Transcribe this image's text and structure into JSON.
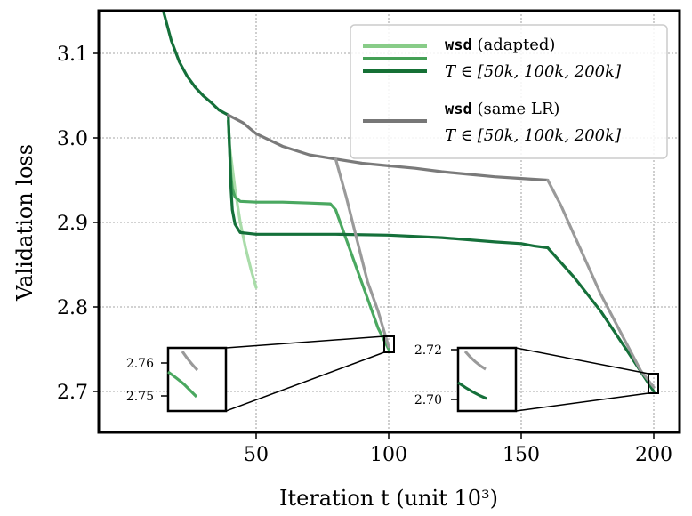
{
  "chart_data": {
    "type": "line",
    "xlabel": "Iteration t (unit 10³)",
    "ylabel": "Validation loss",
    "xlim": [
      0,
      210
    ],
    "ylim": [
      2.65,
      3.15
    ],
    "xticks": [
      50,
      100,
      150,
      200
    ],
    "yticks": [
      2.7,
      2.8,
      2.9,
      3.0,
      3.1
    ],
    "xtick_labels": [
      "50",
      "100",
      "150",
      "200"
    ],
    "ytick_labels": [
      "2.7",
      "2.8",
      "2.9",
      "3.0",
      "3.1"
    ],
    "grid": true,
    "legend_position": "top-right",
    "legend": [
      {
        "group": "adapted",
        "line1_mono": "wsd",
        "line1_rest": " (adapted)",
        "line2": "T ∈ [50k, 100k, 200k]",
        "colors": [
          "#88cc88",
          "#44a055",
          "#157035"
        ]
      },
      {
        "group": "same",
        "line1_mono": "wsd",
        "line1_rest": " (same LR)",
        "line2": "T ∈ [50k, 100k, 200k]",
        "colors": [
          "#777777"
        ]
      }
    ],
    "series": [
      {
        "color": "#a9dca9",
        "width": 3.2,
        "x": [
          39.5,
          40,
          42,
          44,
          46,
          48,
          50
        ],
        "y": [
          3.02,
          2.99,
          2.94,
          2.9,
          2.87,
          2.845,
          2.823
        ]
      },
      {
        "color": "#4aa860",
        "width": 3.2,
        "x": [
          39.5,
          40,
          40.5,
          41,
          42,
          44,
          50,
          60,
          70,
          78,
          80,
          84,
          88,
          92,
          96,
          100
        ],
        "y": [
          3.02,
          2.985,
          2.955,
          2.94,
          2.93,
          2.925,
          2.924,
          2.924,
          2.923,
          2.922,
          2.915,
          2.88,
          2.845,
          2.81,
          2.775,
          2.75
        ]
      },
      {
        "color": "#15703a",
        "width": 3.2,
        "x": [
          15,
          18,
          21,
          24,
          27,
          30,
          33,
          36,
          39.5,
          40,
          40.5,
          41,
          42,
          44,
          50,
          60,
          80,
          100,
          120,
          140,
          150,
          155,
          160,
          170,
          180,
          190,
          200
        ],
        "y": [
          3.15,
          3.115,
          3.09,
          3.073,
          3.06,
          3.05,
          3.042,
          3.033,
          3.027,
          2.985,
          2.94,
          2.915,
          2.898,
          2.888,
          2.886,
          2.886,
          2.886,
          2.885,
          2.882,
          2.877,
          2.875,
          2.872,
          2.87,
          2.835,
          2.795,
          2.748,
          2.7
        ]
      },
      {
        "color": "#7a7a7a",
        "width": 3.2,
        "x": [
          39.5,
          45,
          50,
          60,
          70,
          80,
          90,
          100,
          110,
          120,
          130,
          140,
          150,
          160
        ],
        "y": [
          3.027,
          3.018,
          3.005,
          2.99,
          2.98,
          2.975,
          2.97,
          2.967,
          2.964,
          2.96,
          2.957,
          2.954,
          2.952,
          2.95
        ]
      },
      {
        "color": "#9a9a9a",
        "width": 3.2,
        "x": [
          80,
          84,
          88,
          92,
          96,
          100
        ],
        "y": [
          2.975,
          2.93,
          2.88,
          2.83,
          2.795,
          2.753
        ]
      },
      {
        "color": "#9a9a9a",
        "width": 3.2,
        "x": [
          160,
          165,
          170,
          175,
          180,
          185,
          190,
          195,
          200
        ],
        "y": [
          2.95,
          2.92,
          2.885,
          2.85,
          2.815,
          2.785,
          2.755,
          2.725,
          2.705
        ]
      }
    ],
    "insets": [
      {
        "yticks": [
          "2.76",
          "2.75"
        ],
        "target_x": 100
      },
      {
        "yticks": [
          "2.72",
          "2.70"
        ],
        "target_x": 200
      }
    ]
  }
}
